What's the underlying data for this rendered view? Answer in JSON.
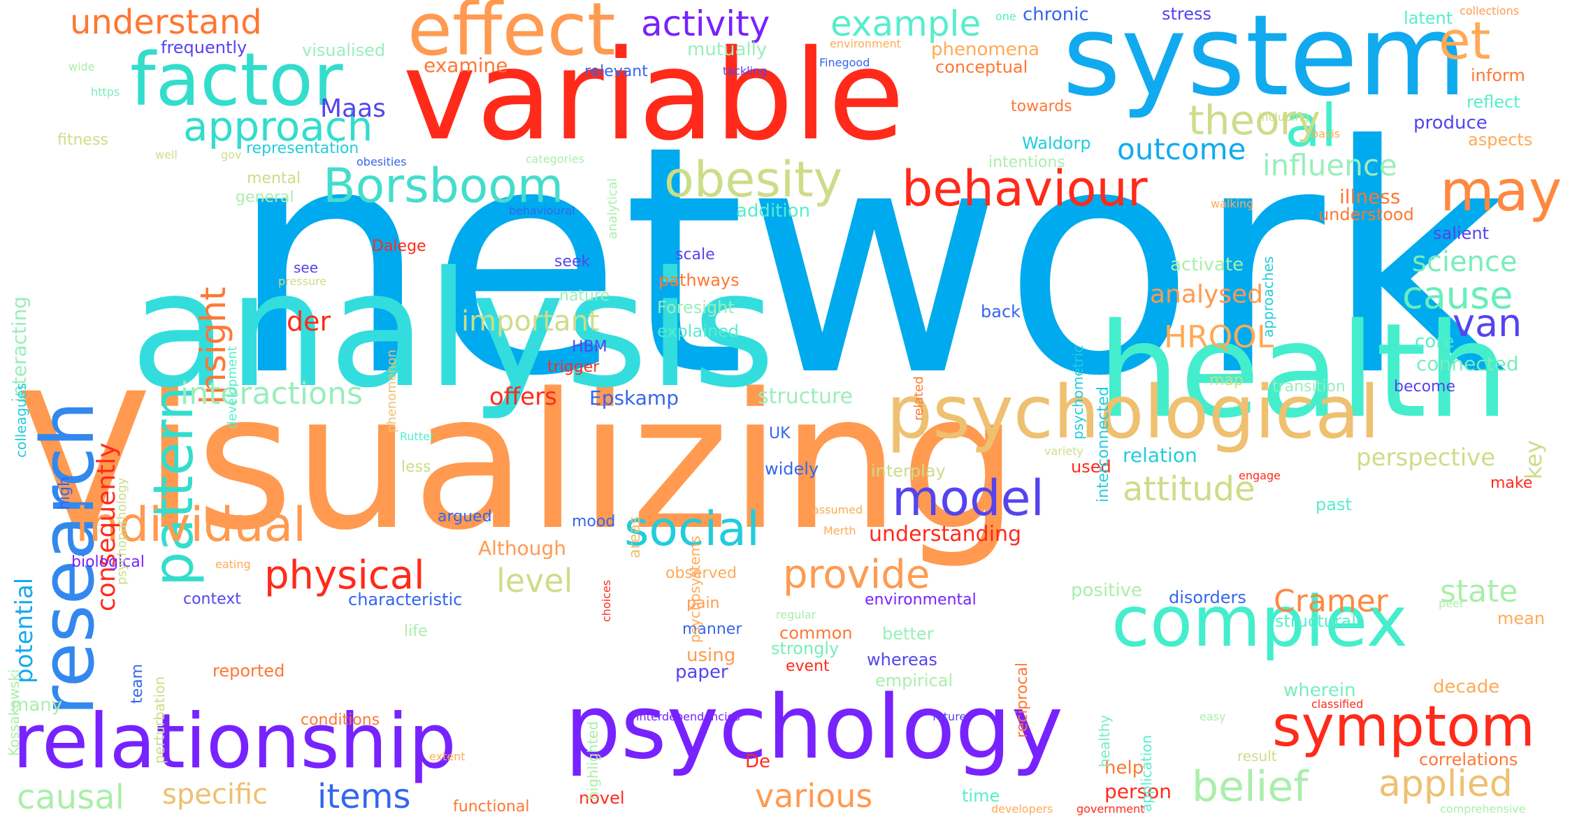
{
  "words": [
    {
      "text": "network",
      "color": "#00aaee"
    },
    {
      "text": "Visualizing",
      "color": "#ff9a50"
    },
    {
      "text": "analysis",
      "color": "#33dddd"
    },
    {
      "text": "variable",
      "color": "#ff2a1a"
    },
    {
      "text": "health",
      "color": "#44eecc"
    },
    {
      "text": "system",
      "color": "#11aaee"
    },
    {
      "text": "psychology",
      "color": "#7722ff"
    },
    {
      "text": "relationship",
      "color": "#7722ff"
    },
    {
      "text": "psychological",
      "color": "#eec070"
    },
    {
      "text": "research",
      "color": "#3388ee"
    },
    {
      "text": "complex",
      "color": "#44eecc"
    },
    {
      "text": "factor",
      "color": "#33ddcc"
    },
    {
      "text": "effect",
      "color": "#ff9a50"
    },
    {
      "text": "symptom",
      "color": "#ff2a1a"
    },
    {
      "text": "pattern",
      "color": "#33ddcc"
    },
    {
      "text": "behaviour",
      "color": "#ff2a1a"
    },
    {
      "text": "Borsboom",
      "color": "#44ddcc"
    },
    {
      "text": "obesity",
      "color": "#ccdd88"
    },
    {
      "text": "individual",
      "color": "#ff9a50"
    },
    {
      "text": "model",
      "color": "#5544ee"
    },
    {
      "text": "social",
      "color": "#22ccdd"
    },
    {
      "text": "approach",
      "color": "#33ddcc"
    },
    {
      "text": "al",
      "color": "#44eecc"
    },
    {
      "text": "et",
      "color": "#ffaa55"
    },
    {
      "text": "may",
      "color": "#ff8840"
    },
    {
      "text": "physical",
      "color": "#ff2a1a"
    },
    {
      "text": "provide",
      "color": "#ff9a50"
    },
    {
      "text": "theory",
      "color": "#ccdd88"
    },
    {
      "text": "influence",
      "color": "#99eebb"
    },
    {
      "text": "cause",
      "color": "#66eebb"
    },
    {
      "text": "van",
      "color": "#5544ee"
    },
    {
      "text": "insight",
      "color": "#ff7733"
    },
    {
      "text": "belief",
      "color": "#aaeeaa"
    },
    {
      "text": "applied",
      "color": "#eec070"
    },
    {
      "text": "attitude",
      "color": "#ccdd88"
    },
    {
      "text": "interactions",
      "color": "#99eebb"
    },
    {
      "text": "understand",
      "color": "#ff7733"
    },
    {
      "text": "activity",
      "color": "#7722ff"
    },
    {
      "text": "example",
      "color": "#55eecc"
    },
    {
      "text": "outcome",
      "color": "#11aaee"
    },
    {
      "text": "science",
      "color": "#77eebb"
    },
    {
      "text": "consequently",
      "color": "#ff2a1a"
    },
    {
      "text": "level",
      "color": "#ccdd88"
    },
    {
      "text": "Cramer",
      "color": "#ff8840"
    },
    {
      "text": "state",
      "color": "#aaeeaa"
    },
    {
      "text": "items",
      "color": "#3366ee"
    },
    {
      "text": "various",
      "color": "#ff9a50"
    },
    {
      "text": "causal",
      "color": "#aaeeaa"
    },
    {
      "text": "specific",
      "color": "#eec070"
    },
    {
      "text": "Maas",
      "color": "#5544ee"
    },
    {
      "text": "important",
      "color": "#ccdd88"
    },
    {
      "text": "HRQOL",
      "color": "#ffaa55"
    },
    {
      "text": "analysed",
      "color": "#ff9a50"
    },
    {
      "text": "perspective",
      "color": "#ccdd88"
    },
    {
      "text": "potential",
      "color": "#11aaee"
    },
    {
      "text": "der",
      "color": "#ff2a1a"
    },
    {
      "text": "offers",
      "color": "#ff2a1a"
    },
    {
      "text": "Epskamp",
      "color": "#3366ee"
    },
    {
      "text": "interacting",
      "color": "#99eebb"
    },
    {
      "text": "examine",
      "color": "#ff7733"
    },
    {
      "text": "key",
      "color": "#ccdd88"
    },
    {
      "text": "understanding",
      "color": "#ff2a1a"
    },
    {
      "text": "person",
      "color": "#ff2a1a"
    },
    {
      "text": "help",
      "color": "#ff7733"
    },
    {
      "text": "Although",
      "color": "#ff9a50"
    },
    {
      "text": "structure",
      "color": "#99eebb"
    },
    {
      "text": "relation",
      "color": "#22ccdd"
    },
    {
      "text": "Waldorp",
      "color": "#22ccdd"
    },
    {
      "text": "mutually",
      "color": "#99eebb"
    },
    {
      "text": "phenomena",
      "color": "#ffaa55"
    },
    {
      "text": "chronic",
      "color": "#3366ee"
    },
    {
      "text": "stress",
      "color": "#5544ee"
    },
    {
      "text": "latent",
      "color": "#55eecc"
    },
    {
      "text": "inform",
      "color": "#ff7733"
    },
    {
      "text": "produce",
      "color": "#5544ee"
    },
    {
      "text": "reflect",
      "color": "#55eecc"
    },
    {
      "text": "aspects",
      "color": "#ffaa55"
    },
    {
      "text": "illness",
      "color": "#ff7733"
    },
    {
      "text": "understood",
      "color": "#ff7733"
    },
    {
      "text": "salient",
      "color": "#5544ee"
    },
    {
      "text": "activate",
      "color": "#aaeeaa"
    },
    {
      "text": "core",
      "color": "#55eecc"
    },
    {
      "text": "connected",
      "color": "#77eebb"
    },
    {
      "text": "become",
      "color": "#5544ee"
    },
    {
      "text": "transition",
      "color": "#99eebb"
    },
    {
      "text": "map",
      "color": "#ccdd88"
    },
    {
      "text": "frequently",
      "color": "#5544ee"
    },
    {
      "text": "visualised",
      "color": "#99eebb"
    },
    {
      "text": "relevant",
      "color": "#3366ee"
    },
    {
      "text": "conceptual",
      "color": "#ff7733"
    },
    {
      "text": "towards",
      "color": "#ff7733"
    },
    {
      "text": "fitness",
      "color": "#ccdd88"
    },
    {
      "text": "representation",
      "color": "#22ccdd"
    },
    {
      "text": "mental",
      "color": "#ccdd88"
    },
    {
      "text": "general",
      "color": "#aaeeaa"
    },
    {
      "text": "addition",
      "color": "#55eecc"
    },
    {
      "text": "Dalege",
      "color": "#ff2a1a"
    },
    {
      "text": "scale",
      "color": "#5544ee"
    },
    {
      "text": "seek",
      "color": "#5544ee"
    },
    {
      "text": "pathways",
      "color": "#ff7733"
    },
    {
      "text": "Foresight",
      "color": "#99eebb"
    },
    {
      "text": "nature",
      "color": "#99eebb"
    },
    {
      "text": "explained",
      "color": "#55eecc"
    },
    {
      "text": "see",
      "color": "#5544ee"
    },
    {
      "text": "HBM",
      "color": "#5544ee"
    },
    {
      "text": "trigger",
      "color": "#ff2a1a"
    },
    {
      "text": "back",
      "color": "#3366ee"
    },
    {
      "text": "UK",
      "color": "#3366ee"
    },
    {
      "text": "widely",
      "color": "#3366ee"
    },
    {
      "text": "interplay",
      "color": "#ccdd88"
    },
    {
      "text": "less",
      "color": "#ccdd88"
    },
    {
      "text": "Rutter",
      "color": "#55eecc"
    },
    {
      "text": "used",
      "color": "#ff2a1a"
    },
    {
      "text": "mood",
      "color": "#3366ee"
    },
    {
      "text": "argued",
      "color": "#3366ee"
    },
    {
      "text": "biological",
      "color": "#7722ff"
    },
    {
      "text": "context",
      "color": "#5544ee"
    },
    {
      "text": "characteristic",
      "color": "#3366ee"
    },
    {
      "text": "observed",
      "color": "#ffaa55"
    },
    {
      "text": "environmental",
      "color": "#7722ff"
    },
    {
      "text": "positive",
      "color": "#aaeeaa"
    },
    {
      "text": "disorders",
      "color": "#3366ee"
    },
    {
      "text": "structural",
      "color": "#55eecc"
    },
    {
      "text": "pain",
      "color": "#ff9a50"
    },
    {
      "text": "manner",
      "color": "#3366ee"
    },
    {
      "text": "common",
      "color": "#ff7733"
    },
    {
      "text": "better",
      "color": "#99eebb"
    },
    {
      "text": "strongly",
      "color": "#77eebb"
    },
    {
      "text": "using",
      "color": "#ff9a50"
    },
    {
      "text": "whereas",
      "color": "#5544ee"
    },
    {
      "text": "event",
      "color": "#ff2a1a"
    },
    {
      "text": "paper",
      "color": "#5544ee"
    },
    {
      "text": "empirical",
      "color": "#aaeeaa"
    },
    {
      "text": "reported",
      "color": "#ff7733"
    },
    {
      "text": "life",
      "color": "#aaeeaa"
    },
    {
      "text": "team",
      "color": "#3366ee"
    },
    {
      "text": "many",
      "color": "#aaeeaa"
    },
    {
      "text": "conditions",
      "color": "#ff7733"
    },
    {
      "text": "wherein",
      "color": "#77eebb"
    },
    {
      "text": "decade",
      "color": "#ffaa55"
    },
    {
      "text": "past",
      "color": "#55eecc"
    },
    {
      "text": "make",
      "color": "#ff2a1a"
    },
    {
      "text": "mean",
      "color": "#ffaa55"
    },
    {
      "text": "correlations",
      "color": "#ff7733"
    },
    {
      "text": "result",
      "color": "#ccdd88"
    },
    {
      "text": "time",
      "color": "#55eecc"
    },
    {
      "text": "novel",
      "color": "#ff2a1a"
    },
    {
      "text": "functional",
      "color": "#ff7733"
    },
    {
      "text": "De",
      "color": "#ff2a1a"
    },
    {
      "text": "high",
      "color": "#3366ee"
    },
    {
      "text": "colleagues",
      "color": "#22ccdd"
    },
    {
      "text": "psychopathology",
      "color": "#ccdd88"
    },
    {
      "text": "perturbation",
      "color": "#ccdd88"
    },
    {
      "text": "Kossakowski",
      "color": "#aaeeaa"
    },
    {
      "text": "development",
      "color": "#55eecc"
    },
    {
      "text": "phenomenon",
      "color": "#eec070"
    },
    {
      "text": "psychometric",
      "color": "#22ccdd"
    },
    {
      "text": "interconnected",
      "color": "#22ccdd"
    },
    {
      "text": "approaches",
      "color": "#22ccdd"
    },
    {
      "text": "analytical",
      "color": "#aaeeaa"
    },
    {
      "text": "related",
      "color": "#ff7733"
    },
    {
      "text": "psychosystems",
      "color": "#ffaa55"
    },
    {
      "text": "areas",
      "color": "#eec070"
    },
    {
      "text": "reciprocal",
      "color": "#ff7733"
    },
    {
      "text": "healthy",
      "color": "#77eebb"
    },
    {
      "text": "application",
      "color": "#55eecc"
    },
    {
      "text": "highlighted",
      "color": "#aaeeaa"
    },
    {
      "text": "eating",
      "color": "#ffaa55"
    },
    {
      "text": "choices",
      "color": "#ff2a1a"
    },
    {
      "text": "one",
      "color": "#55eecc"
    },
    {
      "text": "environment",
      "color": "#ffaa55"
    },
    {
      "text": "tackling",
      "color": "#5544ee"
    },
    {
      "text": "Finegood",
      "color": "#3366ee"
    },
    {
      "text": "collections",
      "color": "#ff9a50"
    },
    {
      "text": "wide",
      "color": "#aaeeaa"
    },
    {
      "text": "https",
      "color": "#77eebb"
    },
    {
      "text": "including",
      "color": "#ccdd88"
    },
    {
      "text": "basis",
      "color": "#ffaa55"
    },
    {
      "text": "well",
      "color": "#ccdd88"
    },
    {
      "text": "gov",
      "color": "#ccdd88"
    },
    {
      "text": "obesities",
      "color": "#3366ee"
    },
    {
      "text": "categories",
      "color": "#aaeeaa"
    },
    {
      "text": "intentions",
      "color": "#aaeeaa"
    },
    {
      "text": "behavioural",
      "color": "#3366ee"
    },
    {
      "text": "walking",
      "color": "#ffaa55"
    },
    {
      "text": "pressure",
      "color": "#ccdd88"
    },
    {
      "text": "variety",
      "color": "#ccdd88"
    },
    {
      "text": "engage",
      "color": "#ff2a1a"
    },
    {
      "text": "assumed",
      "color": "#ffaa55"
    },
    {
      "text": "Merth",
      "color": "#ffaa55"
    },
    {
      "text": "regular",
      "color": "#aaeeaa"
    },
    {
      "text": "peer",
      "color": "#aaeeaa"
    },
    {
      "text": "interdependencies",
      "color": "#7722ff"
    },
    {
      "text": "future",
      "color": "#5544ee"
    },
    {
      "text": "classified",
      "color": "#ff2a1a"
    },
    {
      "text": "easy",
      "color": "#aaeeaa"
    },
    {
      "text": "extent",
      "color": "#ffaa55"
    },
    {
      "text": "developers",
      "color": "#ffaa55"
    },
    {
      "text": "government",
      "color": "#ff2a1a"
    },
    {
      "text": "comprehensive",
      "color": "#aaeeaa"
    }
  ]
}
